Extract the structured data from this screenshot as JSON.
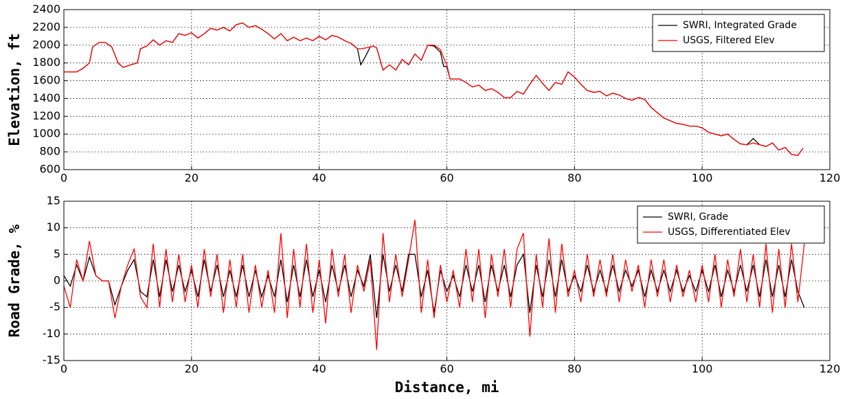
{
  "chart_data": [
    {
      "type": "line",
      "ylabel": "Elevation, ft",
      "x": [
        0,
        2,
        3,
        4,
        4.5,
        5.5,
        6.5,
        7.5,
        8.5,
        9.3,
        10.5,
        11.5,
        12,
        13,
        14,
        15,
        16,
        17,
        18,
        19,
        20,
        21,
        22,
        23,
        24,
        25,
        26,
        27,
        28,
        29,
        30,
        31,
        32,
        33,
        34,
        35,
        36,
        37,
        38,
        39,
        40,
        41,
        42,
        43,
        44,
        45,
        46,
        46.5,
        47,
        48,
        48.5,
        49,
        50,
        51,
        52,
        53,
        54,
        55,
        56,
        57,
        58,
        59,
        59.5,
        60,
        60.5,
        62,
        63,
        64,
        65,
        66,
        67,
        68,
        69,
        70,
        71,
        72,
        73,
        74,
        75,
        76,
        77,
        78,
        79,
        80,
        81,
        82,
        83,
        84,
        85,
        86,
        87,
        88,
        89,
        90,
        91,
        92,
        93,
        94,
        95,
        96,
        97,
        98,
        99,
        100,
        101,
        102,
        103,
        104,
        105,
        106,
        107,
        108,
        109,
        110,
        111,
        112,
        113,
        114,
        115,
        115.8
      ],
      "series": [
        {
          "name": "SWRI, Integrated Grade",
          "color": "#000000",
          "values": [
            1700,
            1700,
            1740,
            1800,
            1980,
            2030,
            2030,
            1980,
            1800,
            1750,
            1780,
            1800,
            1960,
            1990,
            2060,
            2000,
            2050,
            2030,
            2130,
            2110,
            2140,
            2080,
            2130,
            2190,
            2170,
            2200,
            2160,
            2230,
            2250,
            2200,
            2220,
            2180,
            2130,
            2070,
            2130,
            2050,
            2090,
            2050,
            2080,
            2050,
            2100,
            2060,
            2110,
            2090,
            2050,
            2020,
            1960,
            1780,
            1840,
            1980,
            1990,
            1970,
            1720,
            1780,
            1720,
            1840,
            1780,
            1900,
            1830,
            2000,
            1990,
            1920,
            1760,
            1760,
            1620,
            1620,
            1580,
            1530,
            1550,
            1490,
            1510,
            1470,
            1410,
            1410,
            1480,
            1450,
            1560,
            1660,
            1570,
            1490,
            1580,
            1560,
            1700,
            1640,
            1560,
            1490,
            1470,
            1480,
            1430,
            1460,
            1440,
            1400,
            1380,
            1410,
            1390,
            1300,
            1240,
            1180,
            1150,
            1120,
            1110,
            1090,
            1090,
            1070,
            1020,
            1000,
            980,
            1000,
            940,
            890,
            880,
            950,
            880,
            860,
            900,
            820,
            850,
            770,
            760,
            840
          ]
        },
        {
          "name": "USGS, Filtered Elev",
          "color": "#ff0000",
          "values": [
            1700,
            1700,
            1740,
            1800,
            1980,
            2030,
            2030,
            1980,
            1800,
            1750,
            1780,
            1800,
            1960,
            1990,
            2060,
            2000,
            2050,
            2030,
            2130,
            2110,
            2140,
            2080,
            2130,
            2190,
            2170,
            2200,
            2160,
            2230,
            2250,
            2200,
            2220,
            2180,
            2130,
            2070,
            2130,
            2050,
            2090,
            2050,
            2080,
            2050,
            2100,
            2060,
            2110,
            2090,
            2050,
            2020,
            1960,
            1960,
            1965,
            1980,
            1990,
            1970,
            1720,
            1780,
            1720,
            1840,
            1780,
            1900,
            1830,
            2000,
            2000,
            1950,
            1860,
            1780,
            1620,
            1620,
            1580,
            1530,
            1550,
            1490,
            1510,
            1470,
            1410,
            1410,
            1480,
            1450,
            1560,
            1660,
            1570,
            1490,
            1580,
            1560,
            1700,
            1640,
            1560,
            1490,
            1470,
            1480,
            1430,
            1460,
            1440,
            1400,
            1380,
            1410,
            1390,
            1300,
            1240,
            1180,
            1150,
            1120,
            1110,
            1090,
            1090,
            1070,
            1020,
            1000,
            980,
            1000,
            940,
            890,
            880,
            900,
            880,
            860,
            900,
            820,
            850,
            770,
            760,
            840
          ]
        }
      ],
      "xlim": [
        0,
        120
      ],
      "xticks": [
        0,
        20,
        40,
        60,
        80,
        100,
        120
      ],
      "ylim": [
        600,
        2400
      ],
      "yticks": [
        600,
        800,
        1000,
        1200,
        1400,
        1600,
        1800,
        2000,
        2200,
        2400
      ],
      "grid": true,
      "legend": "upper right"
    },
    {
      "type": "line",
      "ylabel": "Road Grade, %",
      "xlabel": "Distance, mi",
      "x": [
        0,
        1,
        2,
        3,
        4,
        5,
        6,
        7,
        8,
        9,
        10,
        11,
        12,
        13,
        14,
        15,
        16,
        17,
        18,
        19,
        20,
        21,
        22,
        23,
        24,
        25,
        26,
        27,
        28,
        29,
        30,
        31,
        32,
        33,
        34,
        35,
        36,
        37,
        38,
        39,
        40,
        41,
        42,
        43,
        44,
        45,
        46,
        47,
        48,
        49,
        50,
        51,
        52,
        53,
        54,
        55,
        56,
        57,
        58,
        59,
        60,
        61,
        62,
        63,
        64,
        65,
        66,
        67,
        68,
        69,
        70,
        71,
        72,
        73,
        74,
        75,
        76,
        77,
        78,
        79,
        80,
        81,
        82,
        83,
        84,
        85,
        86,
        87,
        88,
        89,
        90,
        91,
        92,
        93,
        94,
        95,
        96,
        97,
        98,
        99,
        100,
        101,
        102,
        103,
        104,
        105,
        106,
        107,
        108,
        109,
        110,
        111,
        112,
        113,
        114,
        115,
        116
      ],
      "series": [
        {
          "name": "SWRI, Grade",
          "color": "#000000",
          "values": [
            1,
            -1,
            3,
            0,
            4.5,
            1,
            0,
            0,
            -4.5,
            -1,
            2,
            4,
            -2,
            -3,
            4,
            -3,
            4,
            -2,
            3,
            -2,
            2,
            -3,
            4,
            -2,
            3,
            -3,
            2,
            -3,
            3,
            -3,
            2,
            -3,
            1,
            -3,
            4,
            -4,
            3,
            -3,
            4,
            -3,
            2,
            -4,
            3,
            -2,
            3,
            -3,
            2,
            -1,
            5,
            -7,
            5,
            -2,
            3,
            -2,
            5,
            5,
            -3,
            2,
            -6,
            2,
            -2,
            1,
            -3,
            3,
            -2,
            3,
            -4,
            3,
            -2,
            3,
            -3,
            3,
            5,
            -6,
            3,
            -3,
            4,
            -3,
            4,
            -2,
            1,
            -2,
            3,
            -2,
            2,
            -2,
            3,
            -2,
            2,
            -1,
            2,
            -3,
            2,
            -2,
            2,
            -2,
            2,
            -2,
            1,
            -2,
            2,
            -2,
            3,
            -3,
            2,
            -2,
            3,
            -2,
            3,
            -3,
            4,
            -3,
            3,
            -3,
            4,
            -2,
            -5
          ]
        },
        {
          "name": "USGS, Differentiated Elev",
          "color": "#ff0000",
          "values": [
            -1,
            -5,
            4,
            0,
            7.5,
            1,
            0,
            0,
            -7,
            -1,
            3,
            6,
            -3,
            -5,
            7,
            -5,
            6,
            -4,
            5,
            -4,
            3,
            -5,
            6,
            -3,
            5,
            -6,
            4,
            -5,
            5,
            -6,
            3,
            -5,
            2,
            -6,
            9,
            -7,
            6,
            -5,
            7,
            -6,
            4,
            -8,
            6,
            -3,
            5,
            -6,
            3,
            -2,
            4,
            -13,
            9,
            -4,
            5,
            -3,
            4,
            11.5,
            -6,
            4,
            -7,
            3,
            -4,
            2,
            -5,
            6,
            -4,
            6,
            -7,
            5,
            -3,
            6,
            -5,
            6,
            9,
            -10.5,
            5,
            -5,
            8,
            -6,
            7,
            -3,
            2,
            -4,
            5,
            -3,
            4,
            -3,
            5,
            -4,
            4,
            -2,
            3,
            -5,
            4,
            -3,
            4,
            -4,
            3,
            -3,
            2,
            -4,
            3,
            -4,
            5,
            -5,
            4,
            -3,
            6,
            -4,
            5,
            -5,
            7,
            -6,
            6,
            -5,
            7,
            -4,
            7
          ]
        }
      ],
      "xlim": [
        0,
        120
      ],
      "xticks": [
        0,
        20,
        40,
        60,
        80,
        100,
        120
      ],
      "ylim": [
        -15,
        15
      ],
      "yticks": [
        -15,
        -10,
        -5,
        0,
        5,
        10,
        15
      ],
      "grid": true,
      "legend": "upper right"
    }
  ]
}
